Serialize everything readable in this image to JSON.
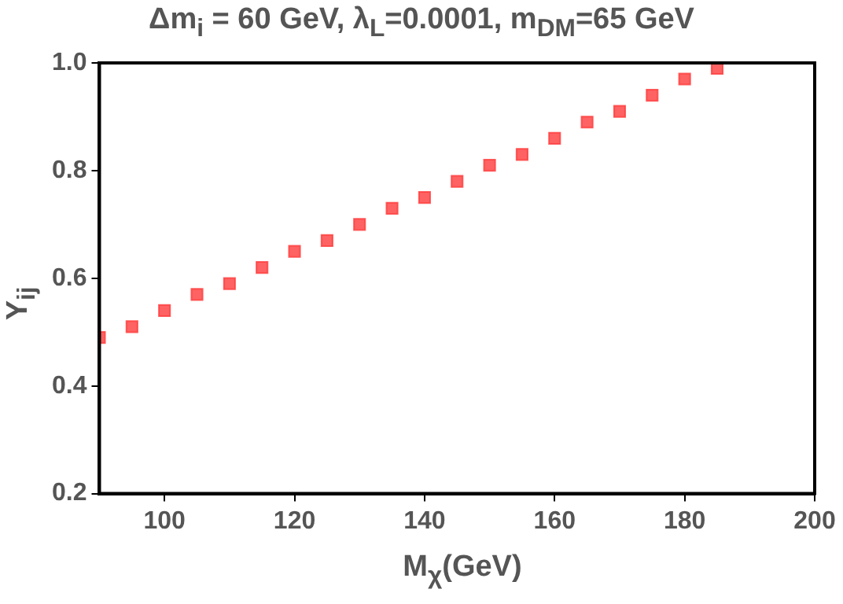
{
  "chart_data": {
    "type": "scatter",
    "title": "Δm$_{i}$ = 60 GeV, λ$_{L}$=0.0001, m$_{DM}$=65 GeV",
    "xlabel": "M$_{χ}$(GeV)",
    "ylabel": "Y$_{ij}$",
    "x": [
      90,
      95,
      100,
      105,
      110,
      115,
      120,
      125,
      130,
      135,
      140,
      145,
      150,
      155,
      160,
      165,
      170,
      175,
      180,
      185
    ],
    "series": [
      {
        "color": "#ff3b3b",
        "values": [
          0.49,
          0.51,
          0.54,
          0.57,
          0.59,
          0.62,
          0.65,
          0.67,
          0.7,
          0.73,
          0.75,
          0.78,
          0.81,
          0.83,
          0.86,
          0.89,
          0.91,
          0.94,
          0.97,
          0.99
        ]
      }
    ],
    "xlim": [
      90,
      200
    ],
    "xticks": [
      100,
      120,
      140,
      160,
      180,
      200
    ],
    "ylim": [
      0.2,
      1.0
    ],
    "yticks": [
      0.2,
      0.4,
      0.6,
      0.8,
      {
        "value": 1,
        "label": "1.0"
      }
    ],
    "marker": "square",
    "grid": false,
    "legend": false
  }
}
